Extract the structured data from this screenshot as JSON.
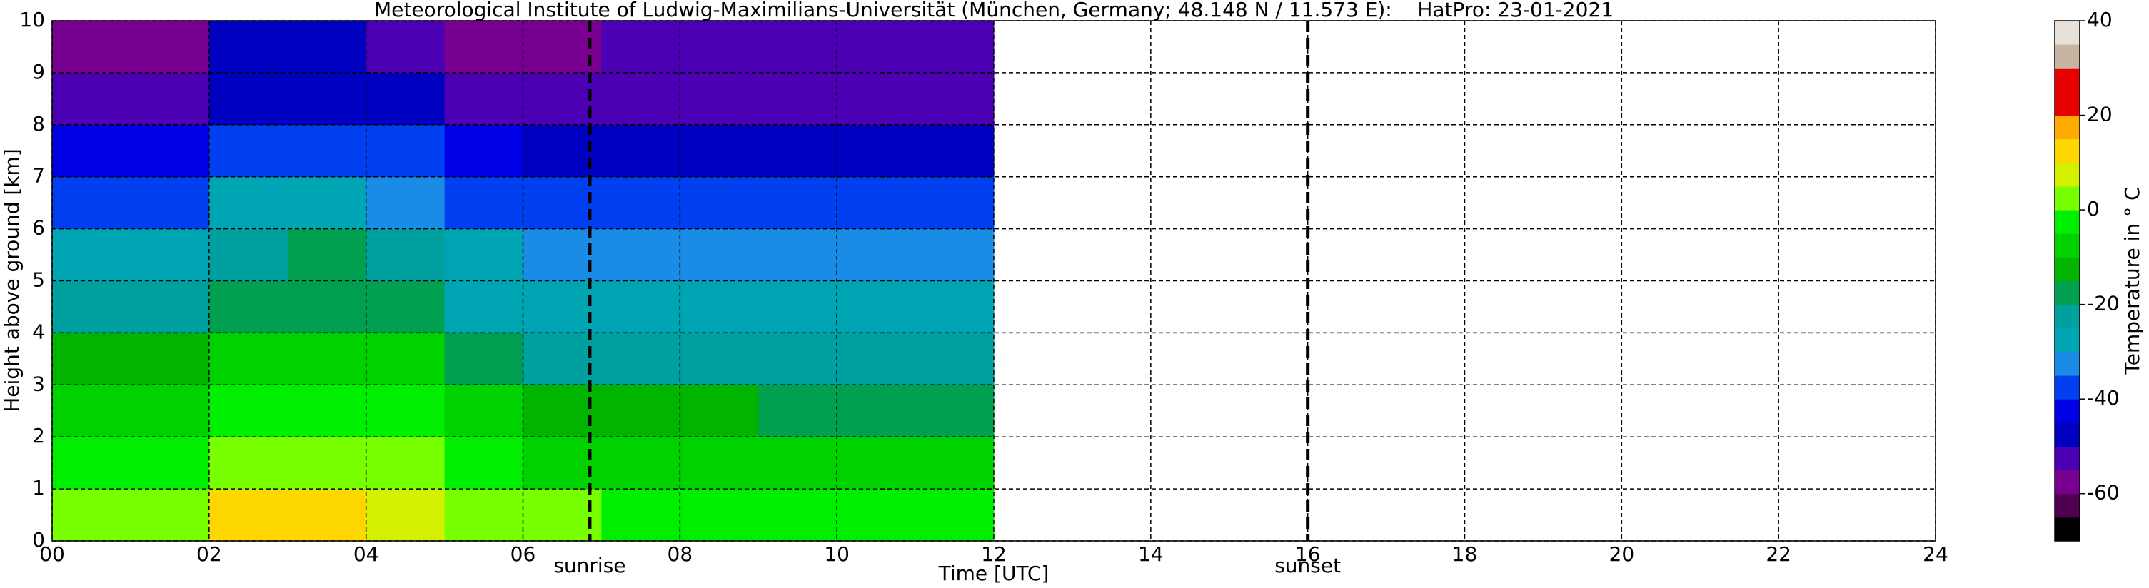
{
  "chart_data": {
    "type": "heatmap",
    "title": "Meteorological Institute of Ludwig-Maximilians-Universität (München, Germany; 48.148 N / 11.573 E):    HatPro: 23-01-2021",
    "x_label": "Time [UTC]",
    "y_label": "Height above ground [km]",
    "colorbar_label": "Temperature in ° C",
    "x_edges": [
      0,
      1,
      2,
      3,
      4,
      5,
      6,
      7,
      8,
      9,
      10,
      11,
      12
    ],
    "y_edges": [
      0,
      1,
      2,
      3,
      4,
      5,
      6,
      7,
      8,
      9,
      10
    ],
    "values": [
      [
        3,
        3,
        10,
        11,
        9,
        2,
        1,
        -1,
        -2,
        -2,
        -2,
        -1
      ],
      [
        -4,
        -4,
        0,
        1,
        0,
        -5,
        -7,
        -8,
        -9,
        -9,
        -9,
        -9
      ],
      [
        -8,
        -8,
        -4,
        -3,
        -4,
        -10,
        -13,
        -15,
        -15,
        -16,
        -16,
        -16
      ],
      [
        -14,
        -14,
        -10,
        -9,
        -10,
        -18,
        -22,
        -23,
        -23,
        -23,
        -23,
        -23
      ],
      [
        -22,
        -22,
        -17,
        -16,
        -18,
        -26,
        -28,
        -28,
        -28,
        -28,
        -28,
        -28
      ],
      [
        -29,
        -29,
        -21,
        -20,
        -23,
        -30,
        -32,
        -32,
        -32,
        -32,
        -33,
        -33
      ],
      [
        -36,
        -36,
        -30,
        -29,
        -31,
        -36,
        -37,
        -37,
        -38,
        -38,
        -38,
        -38
      ],
      [
        -45,
        -45,
        -38,
        -37,
        -40,
        -44,
        -46,
        -47,
        -47,
        -47,
        -47,
        -47
      ],
      [
        -53,
        -53,
        -48,
        -47,
        -50,
        -52,
        -53,
        -53,
        -53,
        -53,
        -53,
        -53
      ],
      [
        -60,
        -60,
        -50,
        -50,
        -52,
        -57,
        -56,
        -55,
        -55,
        -55,
        -55,
        -55
      ]
    ],
    "xlim": [
      0,
      24
    ],
    "ylim": [
      0,
      10
    ],
    "xticks": [
      {
        "value": 0,
        "label": "00"
      },
      {
        "value": 2,
        "label": "02"
      },
      {
        "value": 4,
        "label": "04"
      },
      {
        "value": 6,
        "label": "06"
      },
      {
        "value": 8,
        "label": "08"
      },
      10,
      12,
      14,
      16,
      18,
      20,
      22,
      24
    ],
    "yticks": [
      0,
      1,
      2,
      3,
      4,
      5,
      6,
      7,
      8,
      9,
      10
    ],
    "grid": true,
    "annotations": [
      {
        "x": 6.85,
        "label": "sunrise"
      },
      {
        "x": 16.0,
        "label": "sunset"
      }
    ],
    "clim": [
      -70,
      40
    ],
    "cticks": [
      -60,
      -40,
      -20,
      0,
      20,
      40
    ],
    "colorbar": {
      "bounds": [
        -70,
        -65,
        -60,
        -55,
        -50,
        -45,
        -40,
        -35,
        -30,
        -25,
        -20,
        -15,
        -10,
        -5,
        0,
        5,
        10,
        15,
        20,
        25,
        30,
        35,
        40
      ],
      "colors": [
        "#000000",
        "#500050",
        "#780090",
        "#4b00b4",
        "#0000c0",
        "#0000e6",
        "#0040f0",
        "#1a8ce6",
        "#00a5b4",
        "#00a0a0",
        "#00a050",
        "#00b400",
        "#00d200",
        "#00ee00",
        "#78ff00",
        "#d2f000",
        "#ffd700",
        "#ffaa00",
        "#e60000",
        "#e60000",
        "#c8b4a0",
        "#e6e0d8"
      ]
    }
  }
}
